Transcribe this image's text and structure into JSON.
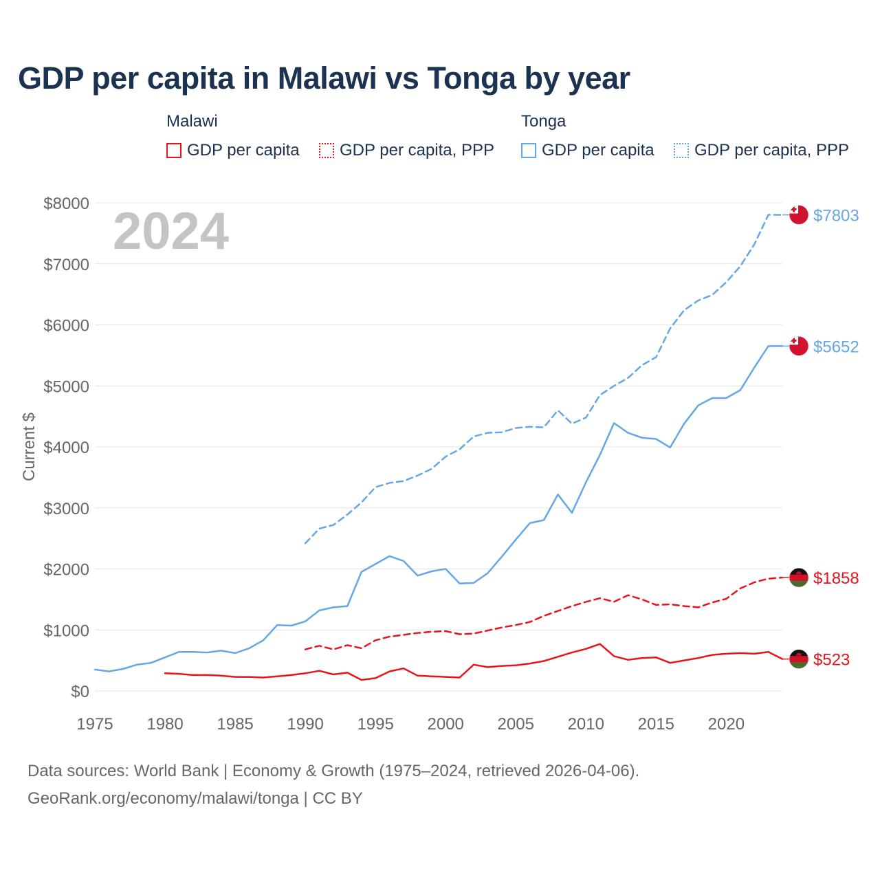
{
  "title": "GDP per capita in Malawi vs Tonga by year",
  "legend": {
    "groups": [
      {
        "name": "Malawi",
        "items": [
          {
            "label": "GDP per capita",
            "style": "solid",
            "color": "#e8141b"
          },
          {
            "label": "GDP per capita, PPP",
            "style": "dotted",
            "color": "#e8141b"
          }
        ]
      },
      {
        "name": "Tonga",
        "items": [
          {
            "label": "GDP per capita",
            "style": "solid",
            "color": "#64a6e6"
          },
          {
            "label": "GDP per capita, PPP",
            "style": "dotted",
            "color": "#64a6e6"
          }
        ]
      }
    ]
  },
  "year_label": "2024",
  "footer": {
    "line1": "Data sources: World Bank | Economy & Growth (1975–2024, retrieved 2026-04-06).",
    "line2": "GeoRank.org/economy/malawi/tonga | CC BY"
  },
  "chart_data": {
    "type": "line",
    "title": "GDP per capita in Malawi vs Tonga by year",
    "xlabel": "",
    "ylabel": "Current $",
    "xlim": [
      1975,
      2024
    ],
    "ylim": [
      0,
      8000
    ],
    "x_ticks": [
      1975,
      1980,
      1985,
      1990,
      1995,
      2000,
      2005,
      2010,
      2015,
      2020
    ],
    "y_ticks": [
      0,
      1000,
      2000,
      3000,
      4000,
      5000,
      6000,
      7000,
      8000
    ],
    "y_tick_labels": [
      "$0",
      "$1000",
      "$2000",
      "$3000",
      "$4000",
      "$5000",
      "$6000",
      "$7000",
      "$8000"
    ],
    "grid": true,
    "series": [
      {
        "name": "Tonga GDP per capita, PPP",
        "country": "Tonga",
        "color": "#64a6e6",
        "dash": true,
        "end_label": "$7803",
        "x": [
          1990,
          1991,
          1992,
          1993,
          1994,
          1995,
          1996,
          1997,
          1998,
          1999,
          2000,
          2001,
          2002,
          2003,
          2004,
          2005,
          2006,
          2007,
          2008,
          2009,
          2010,
          2011,
          2012,
          2013,
          2014,
          2015,
          2016,
          2017,
          2018,
          2019,
          2020,
          2021,
          2022,
          2023,
          2024
        ],
        "y": [
          2420,
          2660,
          2720,
          2890,
          3090,
          3340,
          3410,
          3440,
          3530,
          3640,
          3840,
          3960,
          4170,
          4230,
          4240,
          4310,
          4330,
          4320,
          4600,
          4380,
          4480,
          4850,
          5000,
          5130,
          5340,
          5470,
          5940,
          6240,
          6400,
          6490,
          6700,
          6960,
          7320,
          7803,
          7803
        ]
      },
      {
        "name": "Tonga GDP per capita",
        "country": "Tonga",
        "color": "#64a6e6",
        "dash": false,
        "end_label": "$5652",
        "x": [
          1975,
          1976,
          1977,
          1978,
          1979,
          1980,
          1981,
          1982,
          1983,
          1984,
          1985,
          1986,
          1987,
          1988,
          1989,
          1990,
          1991,
          1992,
          1993,
          1994,
          1995,
          1996,
          1997,
          1998,
          1999,
          2000,
          2001,
          2002,
          2003,
          2004,
          2005,
          2006,
          2007,
          2008,
          2009,
          2010,
          2011,
          2012,
          2013,
          2014,
          2015,
          2016,
          2017,
          2018,
          2019,
          2020,
          2021,
          2022,
          2023,
          2024
        ],
        "y": [
          350,
          320,
          360,
          430,
          460,
          550,
          640,
          640,
          630,
          660,
          620,
          700,
          830,
          1080,
          1070,
          1140,
          1320,
          1370,
          1390,
          1950,
          2080,
          2210,
          2130,
          1890,
          1960,
          2000,
          1760,
          1770,
          1930,
          2200,
          2480,
          2750,
          2800,
          3220,
          2920,
          3420,
          3870,
          4390,
          4230,
          4150,
          4130,
          3990,
          4380,
          4680,
          4800,
          4800,
          4930,
          5300,
          5652,
          5652
        ]
      },
      {
        "name": "Malawi GDP per capita, PPP",
        "country": "Malawi",
        "color": "#e8141b",
        "dash": true,
        "end_label": "$1858",
        "x": [
          1990,
          1991,
          1992,
          1993,
          1994,
          1995,
          1996,
          1997,
          1998,
          1999,
          2000,
          2001,
          2002,
          2003,
          2004,
          2005,
          2006,
          2007,
          2008,
          2009,
          2010,
          2011,
          2012,
          2013,
          2014,
          2015,
          2016,
          2017,
          2018,
          2019,
          2020,
          2021,
          2022,
          2023,
          2024
        ],
        "y": [
          680,
          740,
          680,
          750,
          700,
          830,
          890,
          920,
          950,
          970,
          980,
          930,
          940,
          990,
          1040,
          1080,
          1130,
          1230,
          1310,
          1390,
          1460,
          1520,
          1460,
          1570,
          1500,
          1410,
          1420,
          1390,
          1370,
          1450,
          1510,
          1680,
          1780,
          1840,
          1858
        ]
      },
      {
        "name": "Malawi GDP per capita",
        "country": "Malawi",
        "color": "#e8141b",
        "dash": false,
        "end_label": "$523",
        "x": [
          1980,
          1981,
          1982,
          1983,
          1984,
          1985,
          1986,
          1987,
          1988,
          1989,
          1990,
          1991,
          1992,
          1993,
          1994,
          1995,
          1996,
          1997,
          1998,
          1999,
          2000,
          2001,
          2002,
          2003,
          2004,
          2005,
          2006,
          2007,
          2008,
          2009,
          2010,
          2011,
          2012,
          2013,
          2014,
          2015,
          2016,
          2017,
          2018,
          2019,
          2020,
          2021,
          2022,
          2023,
          2024
        ],
        "y": [
          290,
          280,
          260,
          260,
          250,
          230,
          230,
          220,
          240,
          260,
          290,
          330,
          270,
          300,
          180,
          210,
          320,
          370,
          250,
          240,
          230,
          220,
          430,
          390,
          410,
          420,
          450,
          490,
          560,
          630,
          690,
          770,
          570,
          510,
          540,
          550,
          460,
          500,
          540,
          590,
          610,
          620,
          610,
          640,
          523
        ]
      }
    ]
  }
}
